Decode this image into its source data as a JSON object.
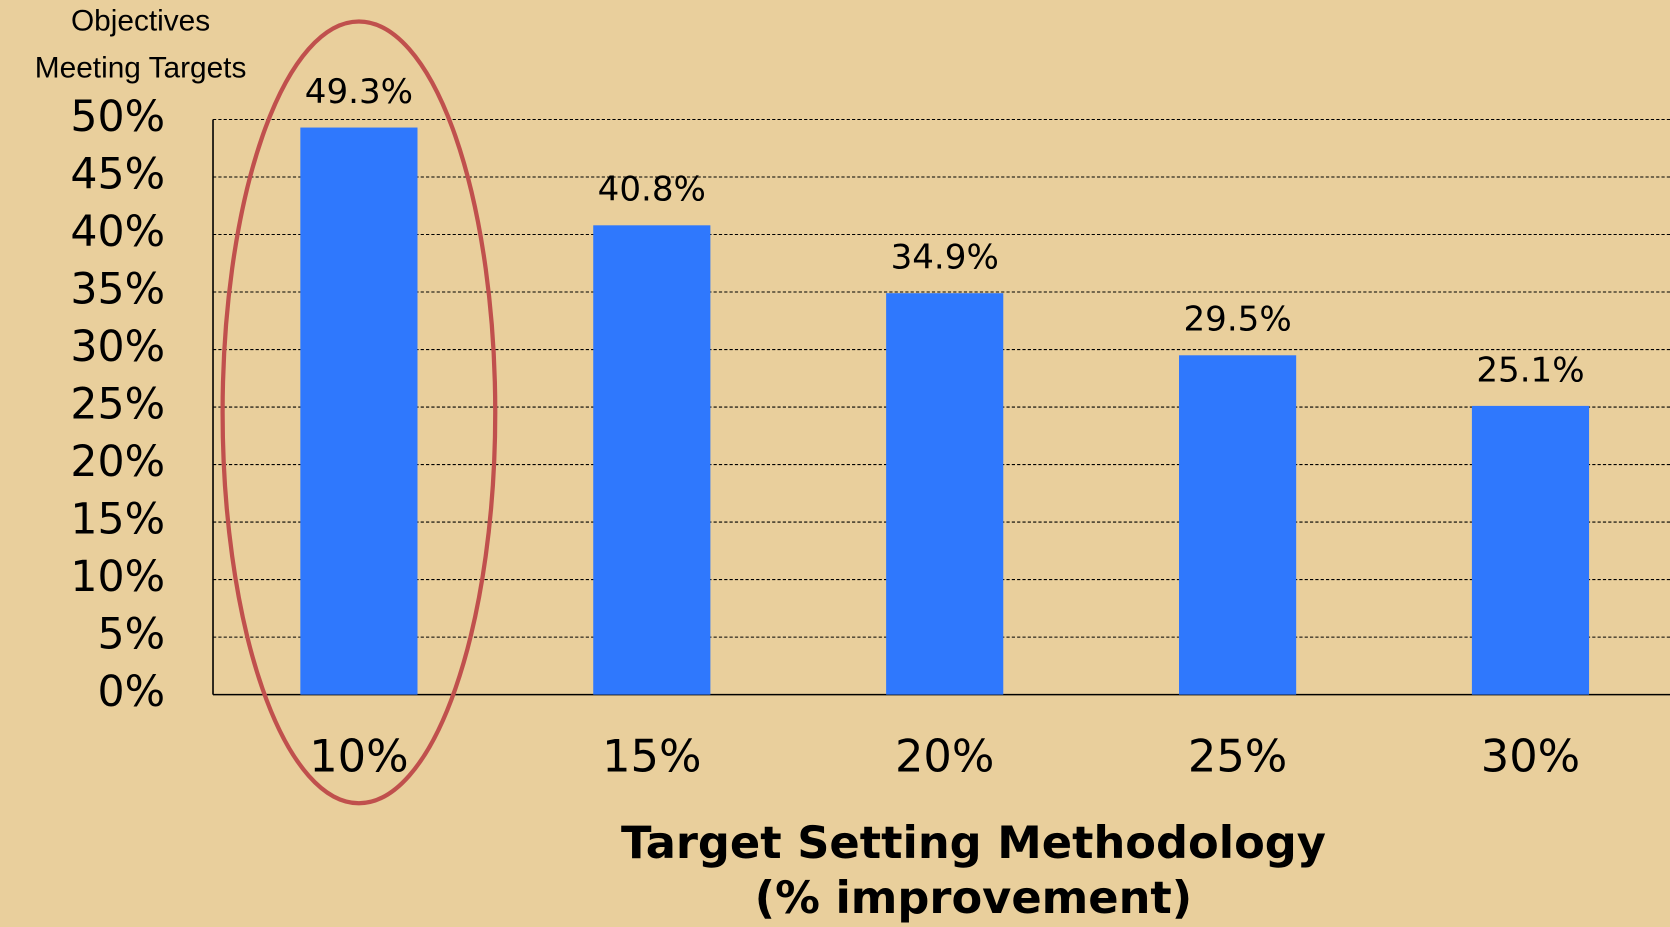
{
  "chart_data": {
    "type": "bar",
    "y_label": [
      "Objectives",
      "Meeting Targets"
    ],
    "x_label": [
      "Target Setting Methodology",
      "(% improvement)"
    ],
    "categories": [
      "10%",
      "15%",
      "20%",
      "25%",
      "30%"
    ],
    "values": [
      49.3,
      40.8,
      34.9,
      29.5,
      25.1
    ],
    "value_labels": [
      "49.3%",
      "40.8%",
      "34.9%",
      "29.5%",
      "25.1%"
    ],
    "color": "#2f78fd",
    "ylim": [
      0,
      50
    ],
    "yticks": [
      {
        "value": 0,
        "label": "0%"
      },
      {
        "value": 5,
        "label": "5%"
      },
      {
        "value": 10,
        "label": "10%"
      },
      {
        "value": 15,
        "label": "15%"
      },
      {
        "value": 20,
        "label": "20%"
      },
      {
        "value": 25,
        "label": "25%"
      },
      {
        "value": 30,
        "label": "30%"
      },
      {
        "value": 35,
        "label": "35%"
      },
      {
        "value": 40,
        "label": "40%"
      },
      {
        "value": 45,
        "label": "45%"
      },
      {
        "value": 50,
        "label": "50%"
      }
    ],
    "grid": true
  }
}
